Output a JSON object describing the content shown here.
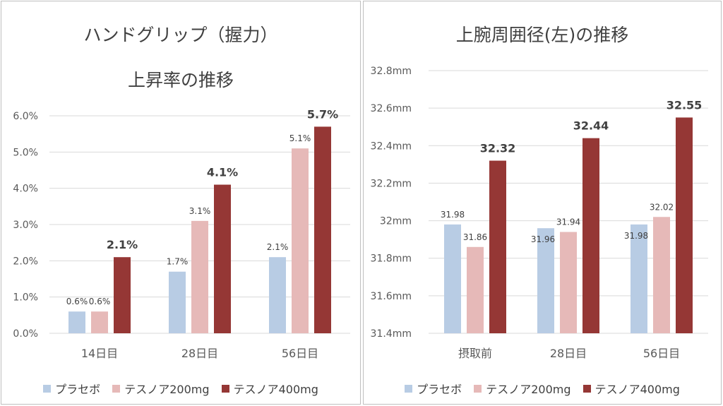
{
  "colors": {
    "placebo": "#b8cce4",
    "tesnoa200": "#e6b9b8",
    "tesnoa400": "#953735",
    "grid": "#d9d9d9",
    "axis_text": "#595959"
  },
  "legend": [
    "プラセボ",
    "テスノア200mg",
    "テスノア400mg"
  ],
  "chart_data": [
    {
      "type": "bar",
      "title_line1": "ハンドグリップ（握力）",
      "title_line2": "上昇率の推移",
      "categories": [
        "14日目",
        "28日目",
        "56日目"
      ],
      "series": [
        {
          "name": "プラセボ",
          "values": [
            0.6,
            1.7,
            2.1
          ],
          "labels": [
            "0.6%",
            "1.7%",
            "2.1%"
          ]
        },
        {
          "name": "テスノア200mg",
          "values": [
            0.6,
            3.1,
            5.1
          ],
          "labels": [
            "0.6%",
            "3.1%",
            "5.1%"
          ]
        },
        {
          "name": "テスノア400mg",
          "values": [
            2.1,
            4.1,
            5.7
          ],
          "labels": [
            "2.1%",
            "4.1%",
            "5.7%"
          ]
        }
      ],
      "ylim": [
        0,
        6
      ],
      "yticks": [
        "0.0%",
        "1.0%",
        "2.0%",
        "3.0%",
        "4.0%",
        "5.0%",
        "6.0%"
      ],
      "grid": true,
      "legend_position": "bottom"
    },
    {
      "type": "bar",
      "title": "上腕周囲径(左)の推移",
      "categories": [
        "摂取前",
        "28日目",
        "56日目"
      ],
      "series": [
        {
          "name": "プラセボ",
          "values": [
            31.98,
            31.96,
            31.98
          ],
          "labels": [
            "31.98",
            "31.96",
            "31.98"
          ]
        },
        {
          "name": "テスノア200mg",
          "values": [
            31.86,
            31.94,
            32.02
          ],
          "labels": [
            "31.86",
            "31.94",
            "32.02"
          ]
        },
        {
          "name": "テスノア400mg",
          "values": [
            32.32,
            32.44,
            32.55
          ],
          "labels": [
            "32.32",
            "32.44",
            "32.55"
          ]
        }
      ],
      "ylim": [
        31.4,
        32.8
      ],
      "yticks": [
        "31.4mm",
        "31.6mm",
        "31.8mm",
        "32mm",
        "32.2mm",
        "32.4mm",
        "32.6mm",
        "32.8mm"
      ],
      "grid": true,
      "legend_position": "bottom"
    }
  ]
}
